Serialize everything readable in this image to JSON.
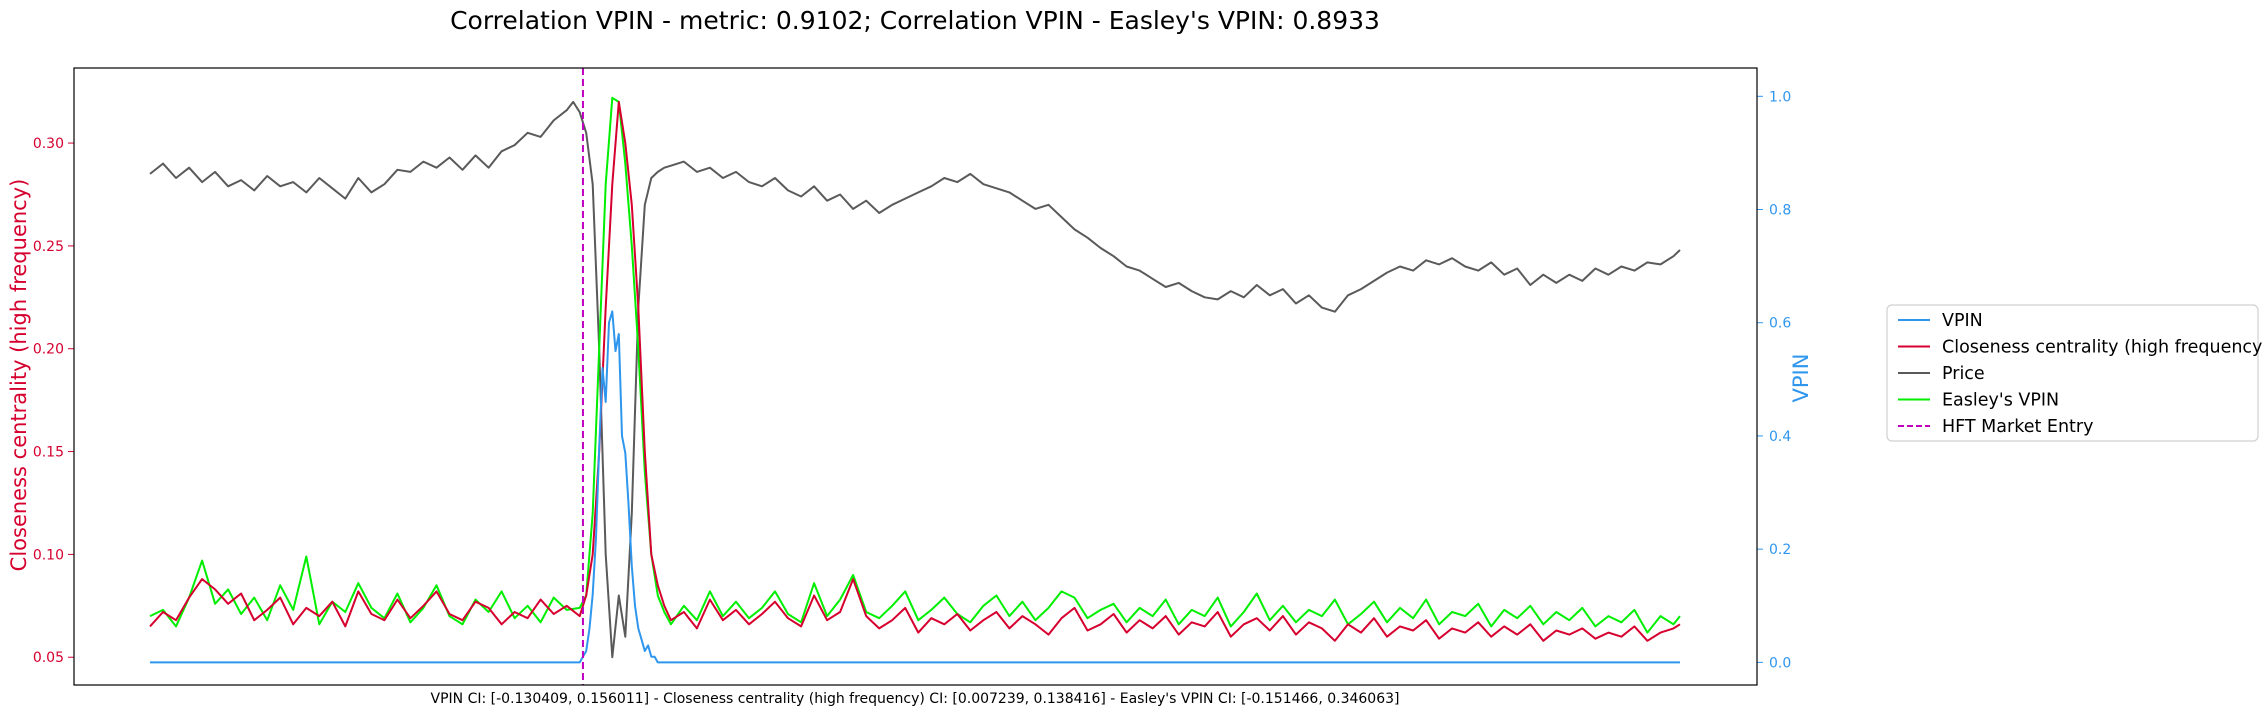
{
  "chart_data": {
    "type": "line",
    "title": "Correlation VPIN - metric: 0.9102; Correlation VPIN - Easley's VPIN: 0.8933",
    "footer": "VPIN CI: [-0.130409, 0.156011] - Closeness centrality (high frequency) CI: [0.007239, 0.138416] - Easley's VPIN CI: [-0.151466, 0.346063]",
    "ylabel_left": "Closeness centrality (high frequency)",
    "ylabel_right": "VPIN",
    "ylim_left": [
      0.0365,
      0.3365
    ],
    "ylim_right": [
      -0.04,
      1.05
    ],
    "xlim": [
      0,
      470
    ],
    "yticks_left": [
      "0.05",
      "0.10",
      "0.15",
      "0.20",
      "0.25",
      "0.30"
    ],
    "yticks_right": [
      "0.0",
      "0.2",
      "0.4",
      "0.6",
      "0.8",
      "1.0"
    ],
    "x_ticks_shown": false,
    "legend_position": "right, outside plot",
    "vertical_line": {
      "name": "HFT Market Entry",
      "x": 133,
      "color": "#c000c0",
      "style": "dashed"
    },
    "colors": {
      "vpin": "#2f96ee",
      "closeness": "#d6002f",
      "price": "#5a5a5a",
      "easley": "#00ee00",
      "left_axis": "#d6002f",
      "right_axis": "#2f96ee"
    },
    "series": [
      {
        "name": "VPIN",
        "axis": "right",
        "color": "#2f96ee",
        "x": [
          0,
          132,
          134,
          135,
          136,
          137,
          138,
          139,
          140,
          141,
          142,
          143,
          144,
          145,
          146,
          147,
          148,
          149,
          150,
          151,
          152,
          153,
          154,
          155,
          156,
          157,
          158,
          159,
          160,
          470
        ],
        "values": [
          0.0,
          0.0,
          0.02,
          0.06,
          0.12,
          0.22,
          0.38,
          0.52,
          0.46,
          0.6,
          0.62,
          0.55,
          0.58,
          0.4,
          0.37,
          0.28,
          0.17,
          0.1,
          0.06,
          0.04,
          0.02,
          0.03,
          0.01,
          0.01,
          0.0,
          0.0,
          0.0,
          0.0,
          0.0,
          0.0
        ]
      },
      {
        "name": "Closeness centrality (high frequency)",
        "axis": "left",
        "color": "#d6002f",
        "x": [
          0,
          4,
          8,
          12,
          16,
          20,
          24,
          28,
          32,
          36,
          40,
          44,
          48,
          52,
          56,
          60,
          64,
          68,
          72,
          76,
          80,
          84,
          88,
          92,
          96,
          100,
          104,
          108,
          112,
          116,
          120,
          124,
          128,
          132,
          134,
          136,
          138,
          140,
          142,
          144,
          146,
          148,
          150,
          152,
          154,
          156,
          158,
          160,
          164,
          168,
          172,
          176,
          180,
          184,
          188,
          192,
          196,
          200,
          204,
          208,
          212,
          216,
          220,
          224,
          228,
          232,
          236,
          240,
          244,
          248,
          252,
          256,
          260,
          264,
          268,
          272,
          276,
          280,
          284,
          288,
          292,
          296,
          300,
          304,
          308,
          312,
          316,
          320,
          324,
          328,
          332,
          336,
          340,
          344,
          348,
          352,
          356,
          360,
          364,
          368,
          372,
          376,
          380,
          384,
          388,
          392,
          396,
          400,
          404,
          408,
          412,
          416,
          420,
          424,
          428,
          432,
          436,
          440,
          444,
          448,
          452,
          456,
          460,
          464,
          468,
          470
        ],
        "values": [
          0.065,
          0.072,
          0.068,
          0.079,
          0.088,
          0.083,
          0.076,
          0.081,
          0.068,
          0.073,
          0.079,
          0.066,
          0.074,
          0.07,
          0.077,
          0.065,
          0.082,
          0.071,
          0.068,
          0.078,
          0.069,
          0.075,
          0.082,
          0.071,
          0.068,
          0.077,
          0.074,
          0.066,
          0.072,
          0.069,
          0.078,
          0.071,
          0.075,
          0.07,
          0.08,
          0.1,
          0.15,
          0.22,
          0.28,
          0.32,
          0.3,
          0.27,
          0.22,
          0.15,
          0.1,
          0.085,
          0.075,
          0.068,
          0.072,
          0.064,
          0.078,
          0.068,
          0.073,
          0.066,
          0.071,
          0.077,
          0.069,
          0.065,
          0.08,
          0.068,
          0.072,
          0.088,
          0.07,
          0.064,
          0.068,
          0.074,
          0.062,
          0.069,
          0.066,
          0.071,
          0.063,
          0.068,
          0.072,
          0.064,
          0.07,
          0.066,
          0.061,
          0.069,
          0.074,
          0.063,
          0.066,
          0.071,
          0.062,
          0.068,
          0.064,
          0.07,
          0.061,
          0.067,
          0.065,
          0.072,
          0.06,
          0.066,
          0.069,
          0.063,
          0.07,
          0.061,
          0.067,
          0.064,
          0.058,
          0.066,
          0.062,
          0.069,
          0.06,
          0.065,
          0.063,
          0.068,
          0.059,
          0.064,
          0.062,
          0.067,
          0.06,
          0.065,
          0.061,
          0.066,
          0.058,
          0.063,
          0.061,
          0.064,
          0.059,
          0.062,
          0.06,
          0.065,
          0.058,
          0.062,
          0.064,
          0.066
        ]
      },
      {
        "name": "Price",
        "axis": "left",
        "color": "#5a5a5a",
        "x": [
          0,
          4,
          8,
          12,
          16,
          20,
          24,
          28,
          32,
          36,
          40,
          44,
          48,
          52,
          56,
          60,
          64,
          68,
          72,
          76,
          80,
          84,
          88,
          92,
          96,
          100,
          104,
          108,
          112,
          116,
          120,
          124,
          128,
          130,
          132,
          134,
          136,
          138,
          140,
          142,
          144,
          146,
          148,
          150,
          152,
          154,
          156,
          158,
          160,
          164,
          168,
          172,
          176,
          180,
          184,
          188,
          192,
          196,
          200,
          204,
          208,
          212,
          216,
          220,
          224,
          228,
          232,
          236,
          240,
          244,
          248,
          252,
          256,
          260,
          264,
          268,
          272,
          276,
          280,
          284,
          288,
          292,
          296,
          300,
          304,
          308,
          312,
          316,
          320,
          324,
          328,
          332,
          336,
          340,
          344,
          348,
          352,
          356,
          360,
          364,
          368,
          372,
          376,
          380,
          384,
          388,
          392,
          396,
          400,
          404,
          408,
          412,
          416,
          420,
          424,
          428,
          432,
          436,
          440,
          444,
          448,
          452,
          456,
          460,
          464,
          468,
          470
        ],
        "values": [
          0.285,
          0.29,
          0.283,
          0.288,
          0.281,
          0.286,
          0.279,
          0.282,
          0.277,
          0.284,
          0.279,
          0.281,
          0.276,
          0.283,
          0.278,
          0.273,
          0.283,
          0.276,
          0.28,
          0.287,
          0.286,
          0.291,
          0.288,
          0.293,
          0.287,
          0.294,
          0.288,
          0.296,
          0.299,
          0.305,
          0.303,
          0.311,
          0.316,
          0.32,
          0.315,
          0.305,
          0.28,
          0.2,
          0.1,
          0.05,
          0.08,
          0.06,
          0.12,
          0.22,
          0.27,
          0.283,
          0.286,
          0.288,
          0.289,
          0.291,
          0.286,
          0.288,
          0.283,
          0.286,
          0.281,
          0.279,
          0.283,
          0.277,
          0.274,
          0.279,
          0.272,
          0.275,
          0.268,
          0.272,
          0.266,
          0.27,
          0.273,
          0.276,
          0.279,
          0.283,
          0.281,
          0.285,
          0.28,
          0.278,
          0.276,
          0.272,
          0.268,
          0.27,
          0.264,
          0.258,
          0.254,
          0.249,
          0.245,
          0.24,
          0.238,
          0.234,
          0.23,
          0.232,
          0.228,
          0.225,
          0.224,
          0.228,
          0.225,
          0.231,
          0.226,
          0.229,
          0.222,
          0.226,
          0.22,
          0.218,
          0.226,
          0.229,
          0.233,
          0.237,
          0.24,
          0.238,
          0.243,
          0.241,
          0.244,
          0.24,
          0.238,
          0.242,
          0.236,
          0.239,
          0.231,
          0.236,
          0.232,
          0.236,
          0.233,
          0.239,
          0.236,
          0.24,
          0.238,
          0.242,
          0.241,
          0.245,
          0.248
        ]
      },
      {
        "name": "Easley's VPIN",
        "axis": "left",
        "color": "#00ee00",
        "x": [
          0,
          4,
          8,
          12,
          16,
          20,
          24,
          28,
          32,
          36,
          40,
          44,
          48,
          52,
          56,
          60,
          64,
          68,
          72,
          76,
          80,
          84,
          88,
          92,
          96,
          100,
          104,
          108,
          112,
          116,
          120,
          124,
          128,
          132,
          134,
          136,
          138,
          140,
          142,
          144,
          146,
          148,
          150,
          152,
          154,
          156,
          158,
          160,
          164,
          168,
          172,
          176,
          180,
          184,
          188,
          192,
          196,
          200,
          204,
          208,
          212,
          216,
          220,
          224,
          228,
          232,
          236,
          240,
          244,
          248,
          252,
          256,
          260,
          264,
          268,
          272,
          276,
          280,
          284,
          288,
          292,
          296,
          300,
          304,
          308,
          312,
          316,
          320,
          324,
          328,
          332,
          336,
          340,
          344,
          348,
          352,
          356,
          360,
          364,
          368,
          372,
          376,
          380,
          384,
          388,
          392,
          396,
          400,
          404,
          408,
          412,
          416,
          420,
          424,
          428,
          432,
          436,
          440,
          444,
          448,
          452,
          456,
          460,
          464,
          468,
          470
        ],
        "values": [
          0.07,
          0.073,
          0.065,
          0.079,
          0.097,
          0.076,
          0.083,
          0.071,
          0.079,
          0.068,
          0.085,
          0.073,
          0.099,
          0.066,
          0.077,
          0.072,
          0.086,
          0.074,
          0.069,
          0.081,
          0.067,
          0.074,
          0.085,
          0.07,
          0.066,
          0.078,
          0.072,
          0.082,
          0.069,
          0.075,
          0.067,
          0.079,
          0.073,
          0.074,
          0.08,
          0.12,
          0.2,
          0.28,
          0.322,
          0.32,
          0.29,
          0.25,
          0.2,
          0.14,
          0.1,
          0.08,
          0.072,
          0.066,
          0.075,
          0.068,
          0.082,
          0.07,
          0.077,
          0.069,
          0.074,
          0.082,
          0.071,
          0.067,
          0.086,
          0.07,
          0.078,
          0.09,
          0.072,
          0.069,
          0.075,
          0.082,
          0.068,
          0.073,
          0.079,
          0.071,
          0.067,
          0.075,
          0.08,
          0.07,
          0.077,
          0.068,
          0.074,
          0.082,
          0.079,
          0.069,
          0.073,
          0.076,
          0.067,
          0.074,
          0.07,
          0.078,
          0.066,
          0.073,
          0.07,
          0.079,
          0.065,
          0.072,
          0.081,
          0.068,
          0.075,
          0.067,
          0.073,
          0.07,
          0.078,
          0.066,
          0.071,
          0.077,
          0.067,
          0.074,
          0.069,
          0.078,
          0.066,
          0.072,
          0.07,
          0.076,
          0.065,
          0.073,
          0.069,
          0.075,
          0.066,
          0.072,
          0.068,
          0.074,
          0.065,
          0.07,
          0.067,
          0.073,
          0.062,
          0.07,
          0.066,
          0.07
        ]
      }
    ]
  }
}
